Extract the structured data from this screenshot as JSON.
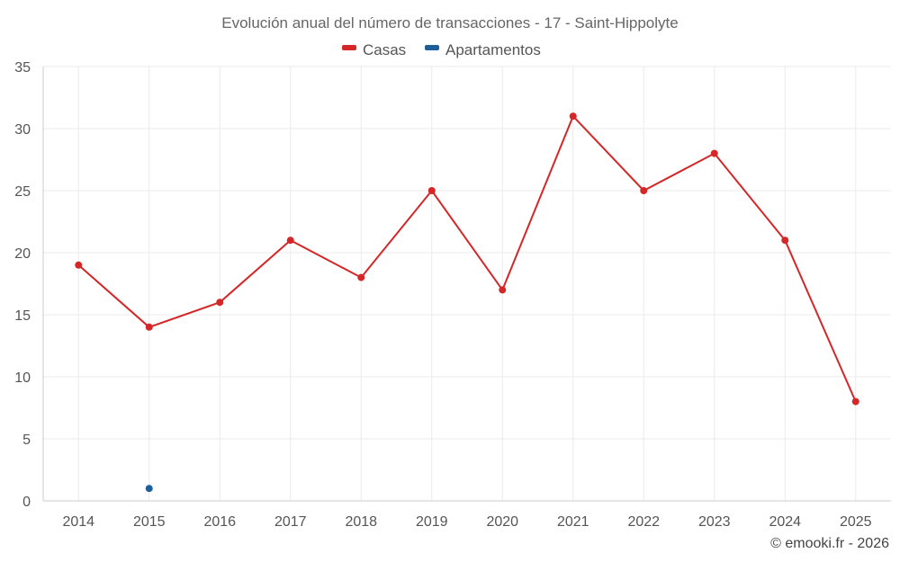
{
  "chart_data": {
    "type": "line",
    "title": "Evolución anual del número de transacciones - 17 - Saint-Hippolyte",
    "categories": [
      "2014",
      "2015",
      "2016",
      "2017",
      "2018",
      "2019",
      "2020",
      "2021",
      "2022",
      "2023",
      "2024",
      "2025"
    ],
    "ylim": [
      0,
      35
    ],
    "yticks": [
      0,
      5,
      10,
      15,
      20,
      25,
      30,
      35
    ],
    "grid": true,
    "legend_position": "top-center",
    "series": [
      {
        "name": "Casas",
        "color": "#d62728",
        "values": [
          19,
          14,
          16,
          21,
          18,
          25,
          17,
          31,
          25,
          28,
          21,
          8
        ]
      },
      {
        "name": "Apartamentos",
        "color": "#1f5f99",
        "values": [
          null,
          1,
          null,
          null,
          null,
          null,
          null,
          null,
          null,
          null,
          null,
          null
        ]
      }
    ]
  },
  "credit": "© emooki.fr - 2026"
}
